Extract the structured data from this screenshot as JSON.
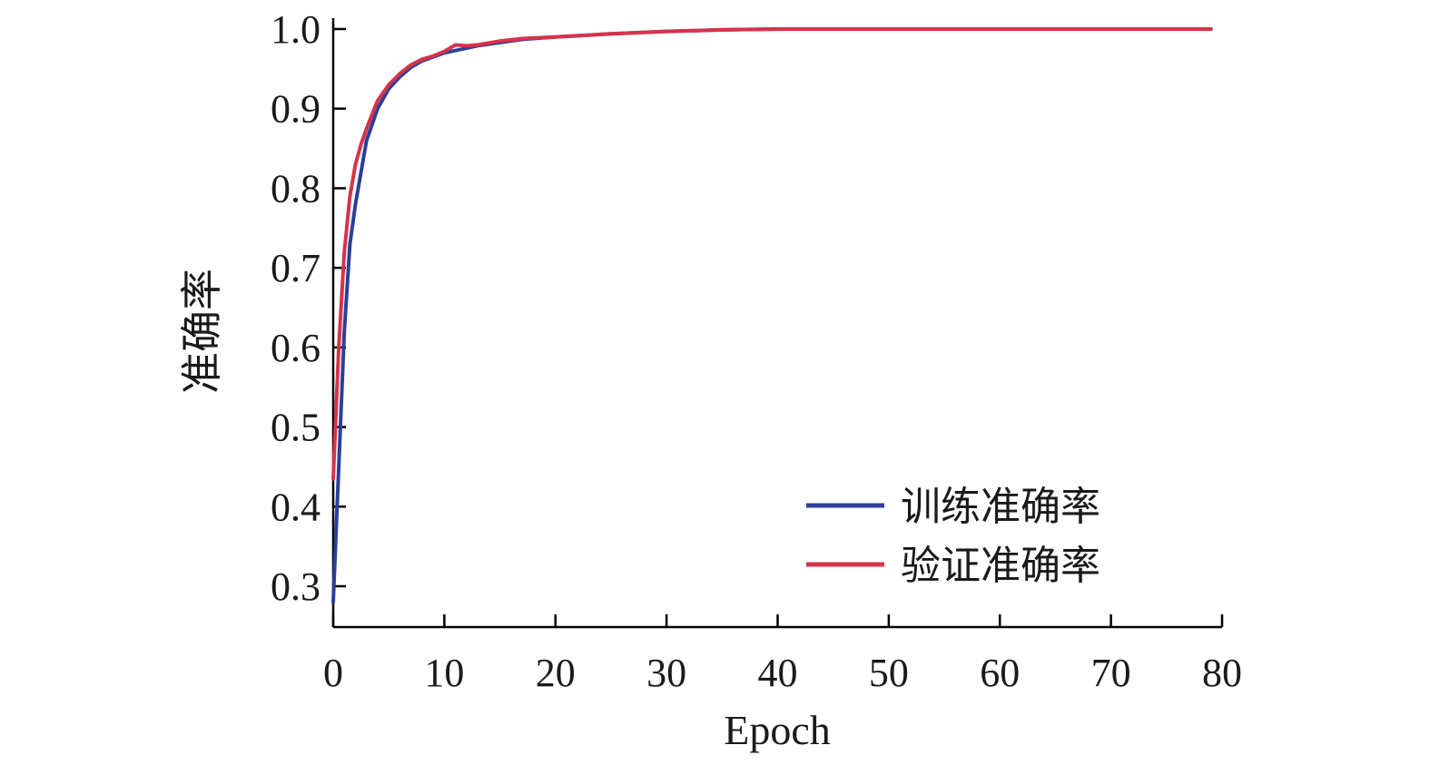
{
  "chart_data": {
    "type": "line",
    "xlabel": "Epoch",
    "ylabel": "准确率",
    "xlim": [
      0,
      80
    ],
    "ylim": [
      0.3,
      1.0
    ],
    "x_ticks": [
      0,
      10,
      20,
      30,
      40,
      50,
      60,
      70,
      80
    ],
    "y_ticks": [
      0.3,
      0.4,
      0.5,
      0.6,
      0.7,
      0.8,
      0.9,
      1.0
    ],
    "x_tick_labels": [
      "0",
      "10",
      "20",
      "30",
      "40",
      "50",
      "60",
      "70",
      "80"
    ],
    "y_tick_labels": [
      "0.3",
      "0.4",
      "0.5",
      "0.6",
      "0.7",
      "0.8",
      "0.9",
      "1.0"
    ],
    "grid": false,
    "legend_position": "bottom-right",
    "series": [
      {
        "name": "训练准确率",
        "color": "#2b3f9a",
        "x": [
          0,
          0.5,
          1,
          1.5,
          2,
          2.5,
          3,
          4,
          5,
          6,
          7,
          8,
          9,
          10,
          11,
          12,
          13,
          15,
          17,
          20,
          25,
          30,
          35,
          40,
          50,
          60,
          70,
          79
        ],
        "y": [
          0.28,
          0.45,
          0.62,
          0.73,
          0.78,
          0.82,
          0.86,
          0.9,
          0.925,
          0.94,
          0.952,
          0.96,
          0.965,
          0.97,
          0.973,
          0.976,
          0.979,
          0.983,
          0.987,
          0.99,
          0.994,
          0.997,
          0.999,
          1.0,
          1.0,
          1.0,
          1.0,
          1.0
        ]
      },
      {
        "name": "验证准确率",
        "color": "#d6334a",
        "x": [
          0,
          0.5,
          1,
          1.5,
          2,
          2.5,
          3,
          4,
          5,
          6,
          7,
          8,
          9,
          10,
          11,
          12,
          13,
          15,
          17,
          20,
          25,
          30,
          35,
          40,
          50,
          60,
          70,
          79
        ],
        "y": [
          0.435,
          0.6,
          0.72,
          0.79,
          0.83,
          0.855,
          0.875,
          0.91,
          0.93,
          0.944,
          0.955,
          0.962,
          0.966,
          0.972,
          0.98,
          0.979,
          0.98,
          0.985,
          0.988,
          0.99,
          0.994,
          0.997,
          0.999,
          1.0,
          1.0,
          1.0,
          1.0,
          1.0
        ]
      }
    ]
  }
}
